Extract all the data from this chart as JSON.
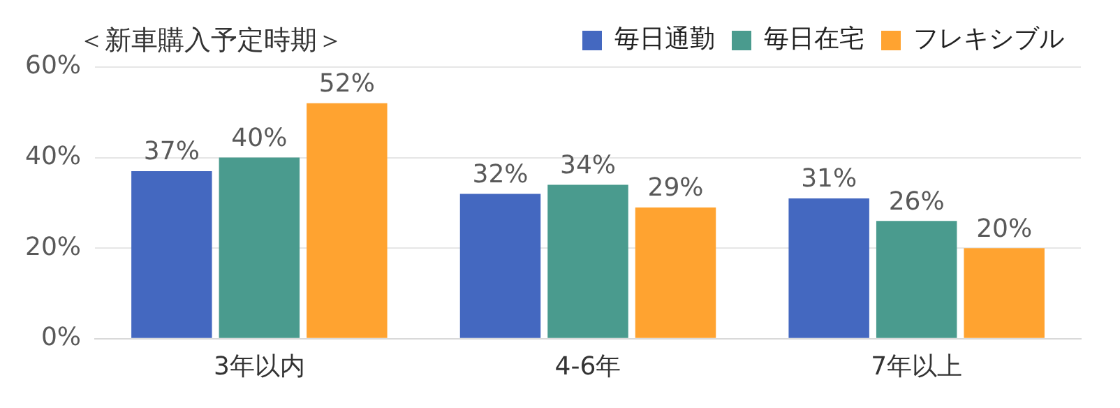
{
  "chart_data": {
    "type": "bar",
    "title": "＜新車購入予定時期＞",
    "categories": [
      "3年以内",
      "4-6年",
      "7年以上"
    ],
    "series": [
      {
        "name": "毎日通勤",
        "color": "#4468c0",
        "values": [
          37,
          32,
          31
        ]
      },
      {
        "name": "毎日在宅",
        "color": "#4a9b8e",
        "values": [
          40,
          34,
          26
        ]
      },
      {
        "name": "フレキシブル",
        "color": "#ffa330",
        "values": [
          52,
          29,
          20
        ]
      }
    ],
    "ylim": [
      0,
      60
    ],
    "yticks": [
      {
        "value": 0,
        "label": "0%"
      },
      {
        "value": 20,
        "label": "20%"
      },
      {
        "value": 40,
        "label": "40%"
      },
      {
        "value": 60,
        "label": "60%"
      }
    ],
    "value_labels": [
      [
        "37%",
        "32%",
        "31%"
      ],
      [
        "40%",
        "34%",
        "26%"
      ],
      [
        "52%",
        "29%",
        "20%"
      ]
    ],
    "grid": "y",
    "legend": "top right"
  }
}
